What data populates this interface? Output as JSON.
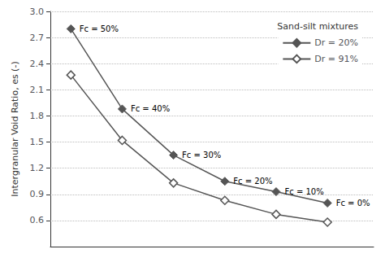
{
  "chart_data": {
    "type": "line",
    "ylabel": "Intergranular Void Ratio, es (-)",
    "legend_title": "Sand-silt mixtures",
    "x": [
      0,
      1,
      2,
      3,
      4,
      5
    ],
    "xlim": [
      -0.4,
      5.9
    ],
    "xticks": [],
    "ylim": [
      0.3,
      3.0
    ],
    "yticks": [
      0.6,
      0.9,
      1.2,
      1.5,
      1.8,
      2.1,
      2.4,
      2.7,
      {
        "value": 3.0,
        "label": "3.0"
      }
    ],
    "series": [
      {
        "name": "Dr = 20%",
        "color": "#555555",
        "marker": "diamond",
        "values": [
          2.8,
          1.88,
          1.35,
          1.05,
          0.93,
          0.8
        ]
      },
      {
        "name": "Dr = 91%",
        "color": "#555555",
        "marker": "open-diamond",
        "values": [
          2.27,
          1.52,
          1.03,
          0.83,
          0.67,
          0.58
        ]
      }
    ],
    "annotations": [
      {
        "text": "Fc = 50%",
        "x": 0,
        "y": 2.8
      },
      {
        "text": "Fc = 40%",
        "x": 1,
        "y": 1.88
      },
      {
        "text": "Fc = 30%",
        "x": 2,
        "y": 1.35
      },
      {
        "text": "Fc = 20%",
        "x": 3,
        "y": 1.05
      },
      {
        "text": "Fc = 10%",
        "x": 4,
        "y": 0.93
      },
      {
        "text": "Fc = 0%",
        "x": 5,
        "y": 0.8
      }
    ],
    "grid": true,
    "legend": "upper right",
    "tick_labels": "y"
  }
}
